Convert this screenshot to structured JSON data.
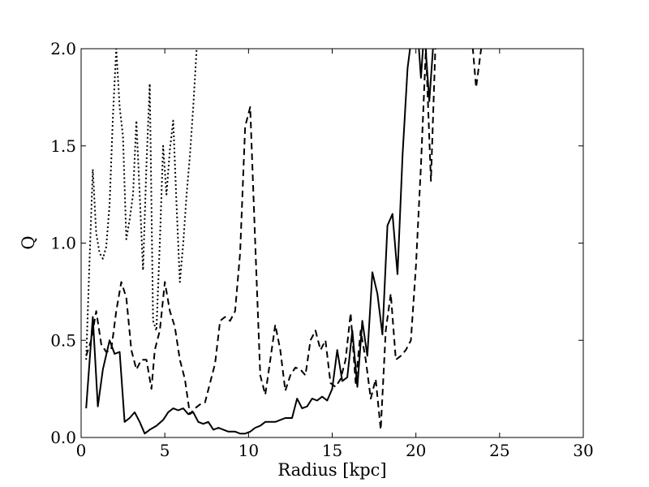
{
  "chart_data": {
    "type": "line",
    "xlabel": "Radius [kpc]",
    "ylabel": "Q",
    "xlim": [
      0,
      30
    ],
    "ylim": [
      0,
      2.0
    ],
    "xticks": [
      0,
      5,
      10,
      15,
      20,
      25,
      30
    ],
    "xtick_labels": [
      "0",
      "5",
      "10",
      "15",
      "20",
      "25",
      "30"
    ],
    "yticks": [
      0,
      0.5,
      1.0,
      1.5,
      2.0
    ],
    "ytick_labels": [
      "0.0",
      "0.5",
      "1.0",
      "1.5",
      "2.0"
    ],
    "grid": false,
    "series": [
      {
        "style": "solid",
        "color": "#000000",
        "x": [
          0.3,
          0.7,
          1.0,
          1.3,
          1.7,
          2.0,
          2.3,
          2.6,
          2.9,
          3.2,
          3.5,
          3.8,
          4.1,
          4.5,
          4.9,
          5.2,
          5.5,
          5.8,
          6.1,
          6.4,
          6.7,
          7.0,
          7.3,
          7.6,
          7.9,
          8.2,
          8.5,
          8.8,
          9.2,
          9.5,
          9.8,
          10.1,
          10.4,
          10.7,
          11.0,
          11.3,
          11.6,
          11.9,
          12.2,
          12.6,
          12.9,
          13.2,
          13.5,
          13.8,
          14.1,
          14.4,
          14.7,
          15.0,
          15.3,
          15.6,
          15.9,
          16.2,
          16.5,
          16.8,
          17.1,
          17.4,
          17.7,
          18.0,
          18.3,
          18.6,
          18.9,
          19.2,
          19.5,
          19.8,
          20.1,
          20.3,
          20.5,
          20.8,
          21.1,
          21.4,
          21.7,
          22.0,
          22.3
        ],
        "values": [
          0.15,
          0.62,
          0.16,
          0.35,
          0.5,
          0.43,
          0.44,
          0.08,
          0.1,
          0.13,
          0.08,
          0.02,
          0.04,
          0.06,
          0.09,
          0.13,
          0.15,
          0.14,
          0.15,
          0.12,
          0.13,
          0.08,
          0.07,
          0.08,
          0.04,
          0.05,
          0.04,
          0.03,
          0.03,
          0.02,
          0.02,
          0.03,
          0.05,
          0.06,
          0.08,
          0.08,
          0.08,
          0.09,
          0.1,
          0.1,
          0.2,
          0.15,
          0.16,
          0.2,
          0.19,
          0.21,
          0.19,
          0.25,
          0.45,
          0.29,
          0.31,
          0.55,
          0.26,
          0.6,
          0.42,
          0.85,
          0.74,
          0.53,
          1.09,
          1.15,
          0.84,
          1.45,
          1.9,
          2.1,
          2.1,
          1.85,
          2.1,
          1.73,
          2.1,
          2.1,
          2.1,
          2.1,
          2.1
        ]
      },
      {
        "style": "dashed",
        "color": "#000000",
        "x": [
          0.3,
          0.6,
          0.9,
          1.2,
          1.5,
          1.8,
          2.1,
          2.4,
          2.7,
          3.0,
          3.3,
          3.6,
          3.9,
          4.2,
          4.4,
          4.7,
          5.0,
          5.3,
          5.6,
          5.9,
          6.2,
          6.5,
          6.8,
          7.1,
          7.4,
          7.7,
          8.0,
          8.3,
          8.6,
          8.9,
          9.2,
          9.5,
          9.8,
          10.1,
          10.4,
          10.7,
          11.0,
          11.3,
          11.6,
          11.9,
          12.2,
          12.5,
          12.8,
          13.1,
          13.4,
          13.7,
          14.0,
          14.3,
          14.6,
          14.9,
          15.2,
          15.5,
          15.8,
          16.1,
          16.4,
          16.7,
          17.0,
          17.3,
          17.6,
          17.9,
          18.2,
          18.5,
          18.8,
          19.1,
          19.4,
          19.7,
          20.0,
          20.3,
          20.6,
          20.9,
          21.2,
          21.5,
          21.8,
          22.1,
          22.4,
          22.7,
          23.0,
          23.3,
          23.6,
          23.9
        ],
        "values": [
          0.42,
          0.5,
          0.65,
          0.48,
          0.44,
          0.45,
          0.65,
          0.8,
          0.72,
          0.45,
          0.35,
          0.4,
          0.4,
          0.25,
          0.45,
          0.55,
          0.8,
          0.65,
          0.57,
          0.4,
          0.3,
          0.12,
          0.15,
          0.17,
          0.18,
          0.28,
          0.38,
          0.6,
          0.62,
          0.6,
          0.65,
          0.95,
          1.6,
          1.7,
          1.0,
          0.32,
          0.22,
          0.4,
          0.58,
          0.45,
          0.24,
          0.32,
          0.36,
          0.35,
          0.32,
          0.5,
          0.55,
          0.45,
          0.5,
          0.28,
          0.26,
          0.3,
          0.4,
          0.64,
          0.28,
          0.55,
          0.4,
          0.2,
          0.3,
          0.04,
          0.55,
          0.74,
          0.4,
          0.42,
          0.45,
          0.5,
          0.88,
          1.4,
          2.0,
          1.32,
          2.1,
          2.1,
          2.1,
          2.1,
          2.1,
          2.1,
          2.1,
          2.1,
          1.8,
          2.0
        ]
      },
      {
        "style": "dotted",
        "color": "#000000",
        "x": [
          0.3,
          0.5,
          0.7,
          0.9,
          1.1,
          1.3,
          1.5,
          1.7,
          1.9,
          2.1,
          2.3,
          2.5,
          2.7,
          2.9,
          3.1,
          3.3,
          3.5,
          3.7,
          3.9,
          4.1,
          4.3,
          4.5,
          4.7,
          4.9,
          5.1,
          5.3,
          5.5,
          5.7,
          5.9,
          6.1,
          6.3,
          6.5,
          6.7,
          6.9
        ],
        "values": [
          0.4,
          0.9,
          1.38,
          1.05,
          0.95,
          0.92,
          0.98,
          1.2,
          1.65,
          2.0,
          1.7,
          1.55,
          1.02,
          1.12,
          1.25,
          1.63,
          1.25,
          0.86,
          1.4,
          1.82,
          0.6,
          0.55,
          1.0,
          1.5,
          1.25,
          1.48,
          1.63,
          1.2,
          0.8,
          1.0,
          1.25,
          1.45,
          1.7,
          2.0
        ]
      }
    ]
  }
}
